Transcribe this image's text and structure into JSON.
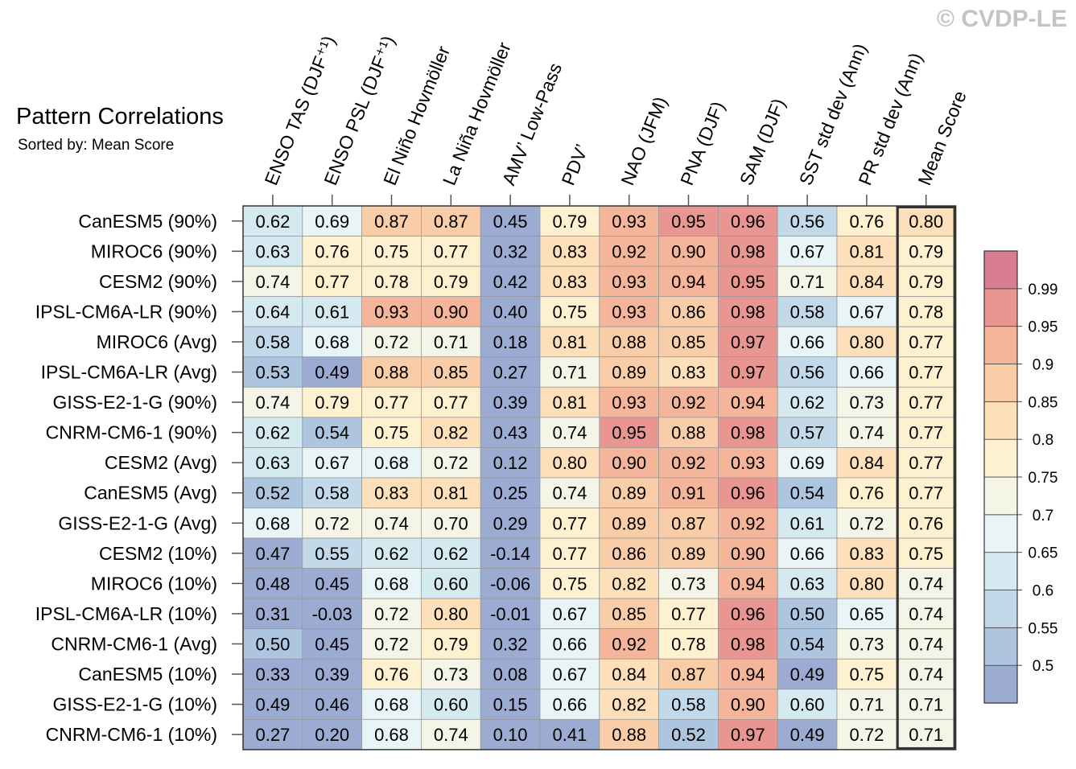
{
  "watermark": "© CVDP-LE",
  "chart_data": {
    "type": "heatmap",
    "title": "Pattern Correlations",
    "subtitle": "Sorted by: Mean Score",
    "columns": [
      "ENSO TAS (DJF⁺¹)",
      "ENSO PSL (DJF⁺¹)",
      "El Niño Hovmöller",
      "La Niña Hovmöller",
      "AMV’ Low-Pass",
      "PDV’",
      "NAO (JFM)",
      "PNA (DJF)",
      "SAM (DJF)",
      "SST std dev (Ann)",
      "PR std dev (Ann)",
      "Mean Score"
    ],
    "rows": [
      "CanESM5 (90%)",
      "MIROC6 (90%)",
      "CESM2 (90%)",
      "IPSL-CM6A-LR (90%)",
      "MIROC6 (Avg)",
      "IPSL-CM6A-LR (Avg)",
      "GISS-E2-1-G (90%)",
      "CNRM-CM6-1 (90%)",
      "CESM2 (Avg)",
      "CanESM5 (Avg)",
      "GISS-E2-1-G (Avg)",
      "CESM2 (10%)",
      "MIROC6 (10%)",
      "IPSL-CM6A-LR (10%)",
      "CNRM-CM6-1 (Avg)",
      "CanESM5 (10%)",
      "GISS-E2-1-G (10%)",
      "CNRM-CM6-1 (10%)"
    ],
    "values": [
      [
        "0.62",
        "0.69",
        "0.87",
        "0.87",
        "0.45",
        "0.79",
        "0.93",
        "0.95",
        "0.96",
        "0.56",
        "0.76",
        "0.80"
      ],
      [
        "0.63",
        "0.76",
        "0.75",
        "0.77",
        "0.32",
        "0.83",
        "0.92",
        "0.90",
        "0.98",
        "0.67",
        "0.81",
        "0.79"
      ],
      [
        "0.74",
        "0.77",
        "0.78",
        "0.79",
        "0.42",
        "0.83",
        "0.93",
        "0.94",
        "0.95",
        "0.71",
        "0.84",
        "0.79"
      ],
      [
        "0.64",
        "0.61",
        "0.93",
        "0.90",
        "0.40",
        "0.75",
        "0.93",
        "0.86",
        "0.98",
        "0.58",
        "0.67",
        "0.78"
      ],
      [
        "0.58",
        "0.68",
        "0.72",
        "0.71",
        "0.18",
        "0.81",
        "0.88",
        "0.85",
        "0.97",
        "0.66",
        "0.80",
        "0.77"
      ],
      [
        "0.53",
        "0.49",
        "0.88",
        "0.85",
        "0.27",
        "0.71",
        "0.89",
        "0.83",
        "0.97",
        "0.56",
        "0.66",
        "0.77"
      ],
      [
        "0.74",
        "0.79",
        "0.77",
        "0.77",
        "0.39",
        "0.81",
        "0.93",
        "0.92",
        "0.94",
        "0.62",
        "0.73",
        "0.77"
      ],
      [
        "0.62",
        "0.54",
        "0.75",
        "0.82",
        "0.43",
        "0.74",
        "0.95",
        "0.88",
        "0.98",
        "0.57",
        "0.74",
        "0.77"
      ],
      [
        "0.63",
        "0.67",
        "0.68",
        "0.72",
        "0.12",
        "0.80",
        "0.90",
        "0.92",
        "0.93",
        "0.69",
        "0.84",
        "0.77"
      ],
      [
        "0.52",
        "0.58",
        "0.83",
        "0.81",
        "0.25",
        "0.74",
        "0.89",
        "0.91",
        "0.96",
        "0.54",
        "0.76",
        "0.77"
      ],
      [
        "0.68",
        "0.72",
        "0.74",
        "0.70",
        "0.29",
        "0.77",
        "0.89",
        "0.87",
        "0.92",
        "0.61",
        "0.72",
        "0.76"
      ],
      [
        "0.47",
        "0.55",
        "0.62",
        "0.62",
        "-0.14",
        "0.77",
        "0.86",
        "0.89",
        "0.90",
        "0.66",
        "0.83",
        "0.75"
      ],
      [
        "0.48",
        "0.45",
        "0.68",
        "0.60",
        "-0.06",
        "0.75",
        "0.82",
        "0.73",
        "0.94",
        "0.63",
        "0.80",
        "0.74"
      ],
      [
        "0.31",
        "-0.03",
        "0.72",
        "0.80",
        "-0.01",
        "0.67",
        "0.85",
        "0.77",
        "0.96",
        "0.50",
        "0.65",
        "0.74"
      ],
      [
        "0.50",
        "0.45",
        "0.72",
        "0.79",
        "0.32",
        "0.66",
        "0.92",
        "0.78",
        "0.98",
        "0.54",
        "0.73",
        "0.74"
      ],
      [
        "0.33",
        "0.39",
        "0.76",
        "0.73",
        "0.08",
        "0.67",
        "0.84",
        "0.87",
        "0.94",
        "0.49",
        "0.75",
        "0.74"
      ],
      [
        "0.49",
        "0.46",
        "0.68",
        "0.60",
        "0.15",
        "0.66",
        "0.82",
        "0.58",
        "0.90",
        "0.60",
        "0.71",
        "0.71"
      ],
      [
        "0.27",
        "0.20",
        "0.68",
        "0.74",
        "0.10",
        "0.41",
        "0.88",
        "0.52",
        "0.97",
        "0.49",
        "0.72",
        "0.71"
      ]
    ],
    "highlighted_column": "Mean Score",
    "colorbar": {
      "levels": [
        "0.5",
        "0.55",
        "0.6",
        "0.65",
        "0.7",
        "0.75",
        "0.8",
        "0.85",
        "0.9",
        "0.95",
        "0.99"
      ],
      "colors": [
        "#9cabd2",
        "#aec5e0",
        "#c2d9e9",
        "#d5e9f1",
        "#e8f4f5",
        "#f4f4e7",
        "#fef1d0",
        "#fde0b9",
        "#f9cda8",
        "#f4b59a",
        "#e99592",
        "#d97d90"
      ]
    }
  }
}
